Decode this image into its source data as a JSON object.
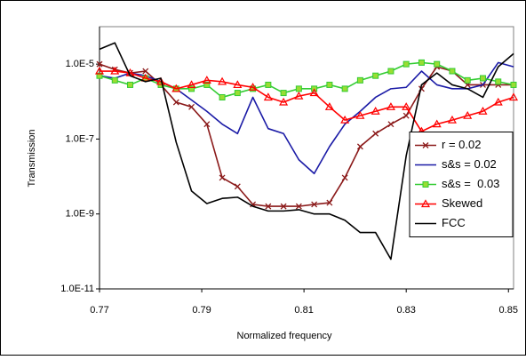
{
  "chart_data": {
    "type": "line",
    "xlabel": "Normalized frequency",
    "ylabel": "Transmission",
    "yscale": "log",
    "xlim": [
      0.77,
      0.851
    ],
    "ylim": [
      1e-11,
      0.0001
    ],
    "xticks": [
      0.77,
      0.79,
      0.81,
      0.83,
      0.85
    ],
    "yticks": [
      {
        "value": 1e-11,
        "label": "1.0E-11"
      },
      {
        "value": 1e-09,
        "label": "1.0E-9"
      },
      {
        "value": 1e-07,
        "label": "1.0E-7"
      },
      {
        "value": 1e-05,
        "label": "1.0E-5"
      }
    ],
    "grid": false,
    "legend": "right",
    "x": [
      0.77,
      0.773,
      0.776,
      0.779,
      0.782,
      0.785,
      0.788,
      0.791,
      0.794,
      0.797,
      0.8,
      0.803,
      0.806,
      0.809,
      0.812,
      0.815,
      0.818,
      0.821,
      0.824,
      0.827,
      0.83,
      0.833,
      0.836,
      0.839,
      0.842,
      0.845,
      0.848,
      0.851
    ],
    "series": [
      {
        "name": "r = 0.02",
        "color": "#8b1a1a",
        "marker": "x",
        "values": [
          1e-05,
          7.2e-06,
          5.8e-06,
          6.5e-06,
          2.8e-06,
          9.6e-07,
          7.2e-07,
          2.5e-07,
          9.3e-09,
          5.4e-09,
          1.8e-09,
          1.6e-09,
          1.6e-09,
          1.6e-09,
          1.8e-09,
          2e-09,
          9.3e-09,
          6.3e-08,
          1.4e-07,
          2.5e-07,
          4.2e-07,
          2.2e-06,
          8.5e-06,
          6.5e-06,
          2.8e-06,
          2.8e-06,
          2.8e-06,
          2.8e-06
        ]
      },
      {
        "name": "s&s = 0.02",
        "color": "#1a1aa6",
        "marker": null,
        "values": [
          4.9e-06,
          4.2e-06,
          5.8e-06,
          4.9e-06,
          3.4e-06,
          2.2e-06,
          1.1e-06,
          5.5e-07,
          2.5e-07,
          1.4e-07,
          1.3e-06,
          1.9e-07,
          1.4e-07,
          2.8e-08,
          1.2e-08,
          6.3e-08,
          2.5e-07,
          5.5e-07,
          1.3e-06,
          2.2e-06,
          2.4e-06,
          6.5e-06,
          2.8e-06,
          2.2e-06,
          2.2e-06,
          2.8e-06,
          1.1e-05,
          8.5e-06
        ]
      },
      {
        "name": "s&s =  0.03",
        "color": "#33cc33",
        "marker": "square",
        "values": [
          4.9e-06,
          3.7e-06,
          2.8e-06,
          4.2e-06,
          2.8e-06,
          2.2e-06,
          2.2e-06,
          2.8e-06,
          1.3e-06,
          1.7e-06,
          2.2e-06,
          2.8e-06,
          1.7e-06,
          2.2e-06,
          2.2e-06,
          2.8e-06,
          2.2e-06,
          3.7e-06,
          4.9e-06,
          6.5e-06,
          1e-05,
          1.1e-05,
          1e-05,
          6.5e-06,
          3.7e-06,
          4.2e-06,
          3.4e-06,
          2.8e-06
        ]
      },
      {
        "name": "Skewed",
        "color": "#ff0000",
        "marker": "triangle",
        "values": [
          6.5e-06,
          6.5e-06,
          5.8e-06,
          4.2e-06,
          3.4e-06,
          2.2e-06,
          2.8e-06,
          3.7e-06,
          3.4e-06,
          2.8e-06,
          2.4e-06,
          1.3e-06,
          9.6e-07,
          1.4e-06,
          1.7e-06,
          7.2e-07,
          3.2e-07,
          4.2e-07,
          5.5e-07,
          7.2e-07,
          7.2e-07,
          1.6e-07,
          2.5e-07,
          3.2e-07,
          4.2e-07,
          5.5e-07,
          9.6e-07,
          1.3e-06
        ]
      },
      {
        "name": "FCC",
        "color": "#000000",
        "marker": null,
        "values": [
          2.5e-05,
          3.7e-05,
          4.9e-06,
          3.4e-06,
          4.2e-06,
          8.2e-08,
          4.1e-09,
          1.9e-09,
          2.6e-09,
          2.8e-09,
          1.6e-09,
          1.2e-09,
          1.2e-09,
          1.3e-09,
          1e-09,
          1e-09,
          6.8e-10,
          3.2e-10,
          3.2e-10,
          6.2e-11,
          3.6e-08,
          2.8e-06,
          5.8e-06,
          2.8e-06,
          2.2e-06,
          1.3e-06,
          8.5e-06,
          1.9e-05
        ]
      }
    ]
  }
}
